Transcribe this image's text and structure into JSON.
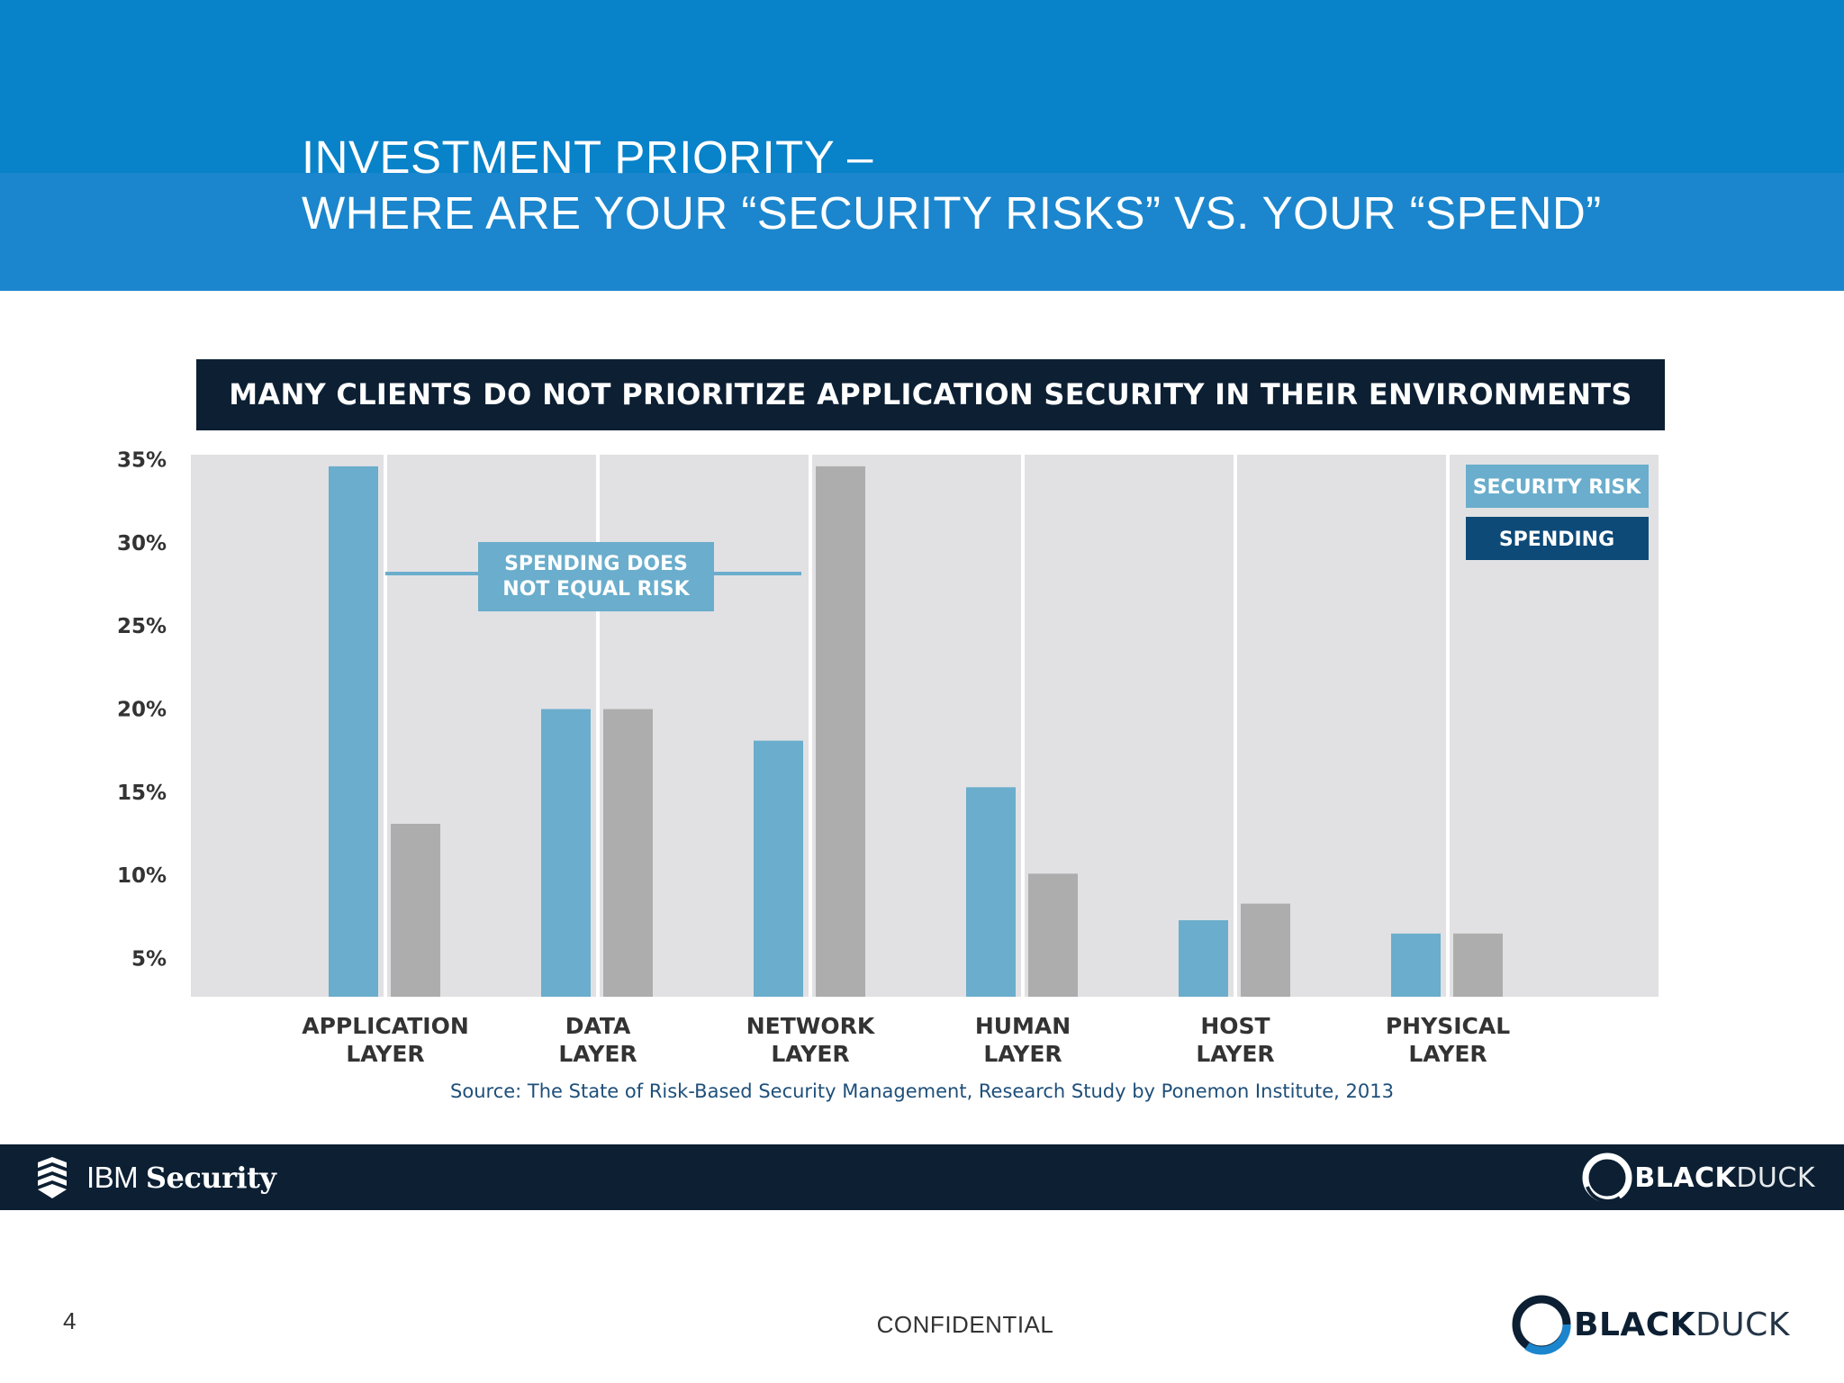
{
  "slide": {
    "title_line1": "INVESTMENT PRIORITY –",
    "title_line2": "WHERE ARE YOUR “SECURITY RISKS” VS. YOUR “SPEND”",
    "banner": "MANY CLIENTS DO NOT PRIORITIZE APPLICATION SECURITY IN THEIR ENVIRONMENTS",
    "source": "Source: The State of Risk-Based Security Management, Research Study by Ponemon Institute, 2013",
    "page_number": "4",
    "confidential": "CONFIDENTIAL"
  },
  "footer": {
    "ibm_prefix": "IBM",
    "ibm_suffix": "Security",
    "bd_bold": "BLACK",
    "bd_light": "DUCK"
  },
  "colors": {
    "header": "#0882c9",
    "banner": "#0c1f33",
    "security_risk": "#6aadcc",
    "spending": "#adadad",
    "legend_spending": "#0e4a78",
    "plot_bg": "#e1e1e4"
  },
  "chart_data": {
    "type": "bar",
    "title": "MANY CLIENTS DO NOT PRIORITIZE APPLICATION SECURITY IN THEIR ENVIRONMENTS",
    "categories": [
      [
        "APPLICATION",
        "LAYER"
      ],
      [
        "DATA",
        "LAYER"
      ],
      [
        "NETWORK",
        "LAYER"
      ],
      [
        "HUMAN",
        "LAYER"
      ],
      [
        "HOST",
        "LAYER"
      ],
      [
        "PHYSICAL",
        "LAYER"
      ]
    ],
    "series": [
      {
        "name": "SECURITY RISK",
        "values": [
          34.6,
          20,
          18.1,
          15.3,
          7.3,
          6.5
        ]
      },
      {
        "name": "SPENDING",
        "values": [
          13.1,
          20,
          34.6,
          10.1,
          8.3,
          6.5
        ]
      }
    ],
    "yticks": [
      "35%",
      "30%",
      "25%",
      "20%",
      "15%",
      "10%",
      "5%"
    ],
    "ytick_values": [
      35,
      30,
      25,
      20,
      15,
      10,
      5
    ],
    "ylim": [
      2.7,
      35.3
    ],
    "legend_position": "top-right",
    "annotation": [
      "SPENDING DOES",
      "NOT EQUAL RISK"
    ]
  }
}
